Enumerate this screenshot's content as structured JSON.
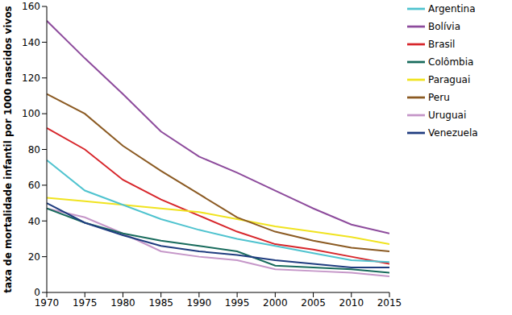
{
  "chart_data": {
    "type": "line",
    "y_label": "taxa de mortalidade infantil por 1000 nascidos vivos",
    "x": [
      1970,
      1975,
      1980,
      1985,
      1990,
      1995,
      2000,
      2005,
      2010,
      2015
    ],
    "xlim": [
      1970,
      2015
    ],
    "xticks": [
      1970,
      1975,
      1980,
      1985,
      1990,
      1995,
      2000,
      2005,
      2010,
      2015
    ],
    "ylim": [
      0,
      160
    ],
    "yticks": [
      0,
      20,
      40,
      60,
      80,
      100,
      120,
      140,
      160
    ],
    "grid": false,
    "legend": "upper right",
    "series": [
      {
        "name": "Brasil",
        "color": "#d7262b",
        "values": [
          92,
          80,
          63,
          52,
          43,
          34,
          27,
          24,
          20,
          16
        ]
      },
      {
        "name": "Bolívia",
        "color": "#8d4b9c",
        "values": [
          152,
          131,
          111,
          90,
          76,
          67,
          57,
          47,
          38,
          33
        ]
      },
      {
        "name": "Paraguai",
        "color": "#f0e31f",
        "values": [
          53,
          51,
          49,
          47,
          45,
          41,
          37,
          34,
          31,
          27
        ]
      },
      {
        "name": "Argentina",
        "color": "#4fc3cf",
        "values": [
          74,
          57,
          49,
          41,
          35,
          30,
          26,
          22,
          18,
          17
        ]
      },
      {
        "name": "Uruguai",
        "color": "#c596c8",
        "values": [
          47,
          42,
          33,
          23,
          20,
          18,
          13,
          12,
          11,
          9
        ]
      },
      {
        "name": "Peru",
        "color": "#8b5a22",
        "values": [
          111,
          100,
          82,
          68,
          55,
          42,
          34,
          29,
          25,
          23
        ]
      },
      {
        "name": "Colômbia",
        "color": "#186b5c",
        "values": [
          47,
          39,
          33,
          29,
          26,
          23,
          15,
          14,
          13,
          11
        ]
      },
      {
        "name": "Venezuela",
        "color": "#1f3c7f",
        "values": [
          50,
          39,
          32,
          26,
          23,
          21,
          18,
          16,
          14,
          14
        ]
      }
    ]
  }
}
